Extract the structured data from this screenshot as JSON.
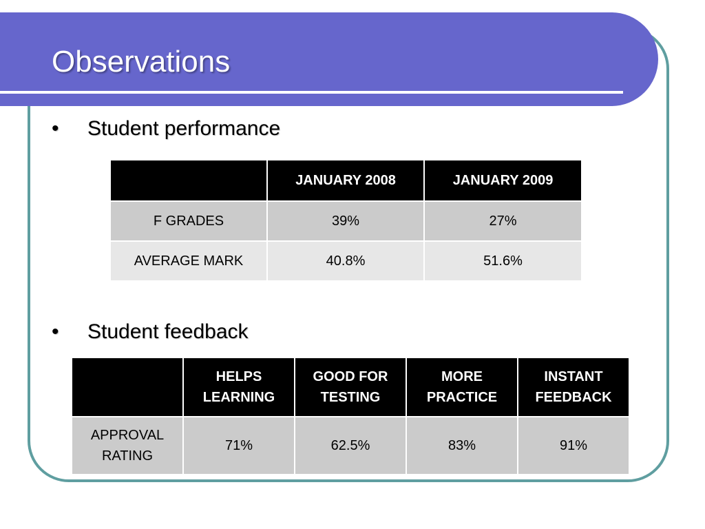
{
  "slide": {
    "title": "Observations"
  },
  "bullets": [
    {
      "marker": "•",
      "text": "Student performance"
    },
    {
      "marker": "•",
      "text": "Student feedback"
    }
  ],
  "performance_table": {
    "headers": [
      "",
      "JANUARY 2008",
      "JANUARY 2009"
    ],
    "rows": [
      {
        "label": "F GRADES",
        "values": [
          "39%",
          "27%"
        ]
      },
      {
        "label": "AVERAGE MARK",
        "values": [
          "40.8%",
          "51.6%"
        ]
      }
    ]
  },
  "feedback_table": {
    "headers": [
      "",
      "HELPS LEARNING",
      "GOOD FOR TESTING",
      "MORE PRACTICE",
      "INSTANT FEEDBACK"
    ],
    "rows": [
      {
        "label": "APPROVAL RATING",
        "values": [
          "71%",
          "62.5%",
          "83%",
          "91%"
        ]
      }
    ]
  },
  "colors": {
    "title_band": "#6666cc",
    "frame_border": "#5f9ea0",
    "table_header": "#000000",
    "row_dark": "#cbcbcb",
    "row_light": "#e7e7e7"
  }
}
